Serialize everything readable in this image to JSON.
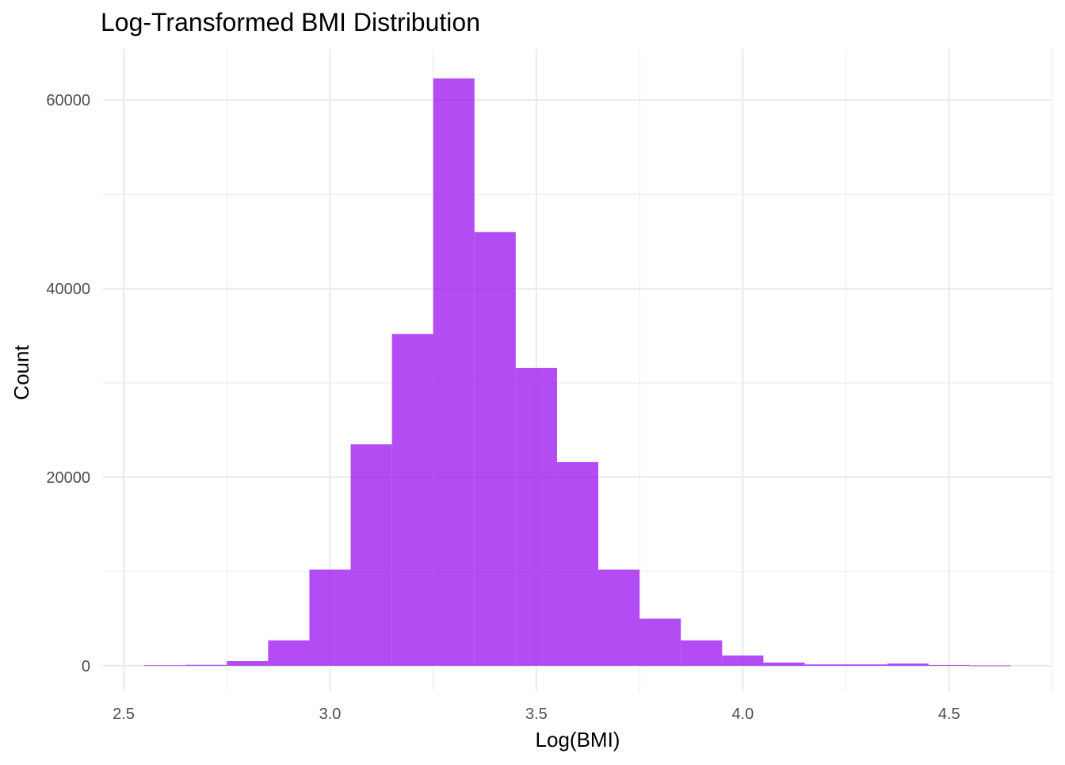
{
  "chart_data": {
    "type": "bar",
    "title": "Log-Transformed BMI Distribution",
    "xlabel": "Log(BMI)",
    "ylabel": "Count",
    "bin_width": 0.1,
    "bins": [
      {
        "x0": 2.55,
        "x1": 2.65,
        "count": 50
      },
      {
        "x0": 2.65,
        "x1": 2.75,
        "count": 100
      },
      {
        "x0": 2.75,
        "x1": 2.85,
        "count": 500
      },
      {
        "x0": 2.85,
        "x1": 2.95,
        "count": 2700
      },
      {
        "x0": 2.95,
        "x1": 3.05,
        "count": 10200
      },
      {
        "x0": 3.05,
        "x1": 3.15,
        "count": 23500
      },
      {
        "x0": 3.15,
        "x1": 3.25,
        "count": 35200
      },
      {
        "x0": 3.25,
        "x1": 3.35,
        "count": 62300
      },
      {
        "x0": 3.35,
        "x1": 3.45,
        "count": 46000
      },
      {
        "x0": 3.45,
        "x1": 3.55,
        "count": 31600
      },
      {
        "x0": 3.55,
        "x1": 3.65,
        "count": 21600
      },
      {
        "x0": 3.65,
        "x1": 3.75,
        "count": 10200
      },
      {
        "x0": 3.75,
        "x1": 3.85,
        "count": 5000
      },
      {
        "x0": 3.85,
        "x1": 3.95,
        "count": 2700
      },
      {
        "x0": 3.95,
        "x1": 4.05,
        "count": 1100
      },
      {
        "x0": 4.05,
        "x1": 4.15,
        "count": 350
      },
      {
        "x0": 4.15,
        "x1": 4.25,
        "count": 150
      },
      {
        "x0": 4.25,
        "x1": 4.35,
        "count": 150
      },
      {
        "x0": 4.35,
        "x1": 4.45,
        "count": 250
      },
      {
        "x0": 4.45,
        "x1": 4.55,
        "count": 80
      },
      {
        "x0": 4.55,
        "x1": 4.65,
        "count": 30
      }
    ],
    "xlim": [
      2.45,
      4.75
    ],
    "ylim": [
      -2700,
      65400
    ],
    "x_ticks": [
      2.5,
      3.0,
      3.5,
      4.0,
      4.5
    ],
    "x_tick_labels": [
      "2.5",
      "3.0",
      "3.5",
      "4.0",
      "4.5"
    ],
    "y_ticks": [
      0,
      20000,
      40000,
      60000
    ],
    "y_tick_labels": [
      "0",
      "20000",
      "40000",
      "60000"
    ],
    "grid": true,
    "legend": "none",
    "bar_color": "#a020f0",
    "bar_opacity": 0.8
  }
}
